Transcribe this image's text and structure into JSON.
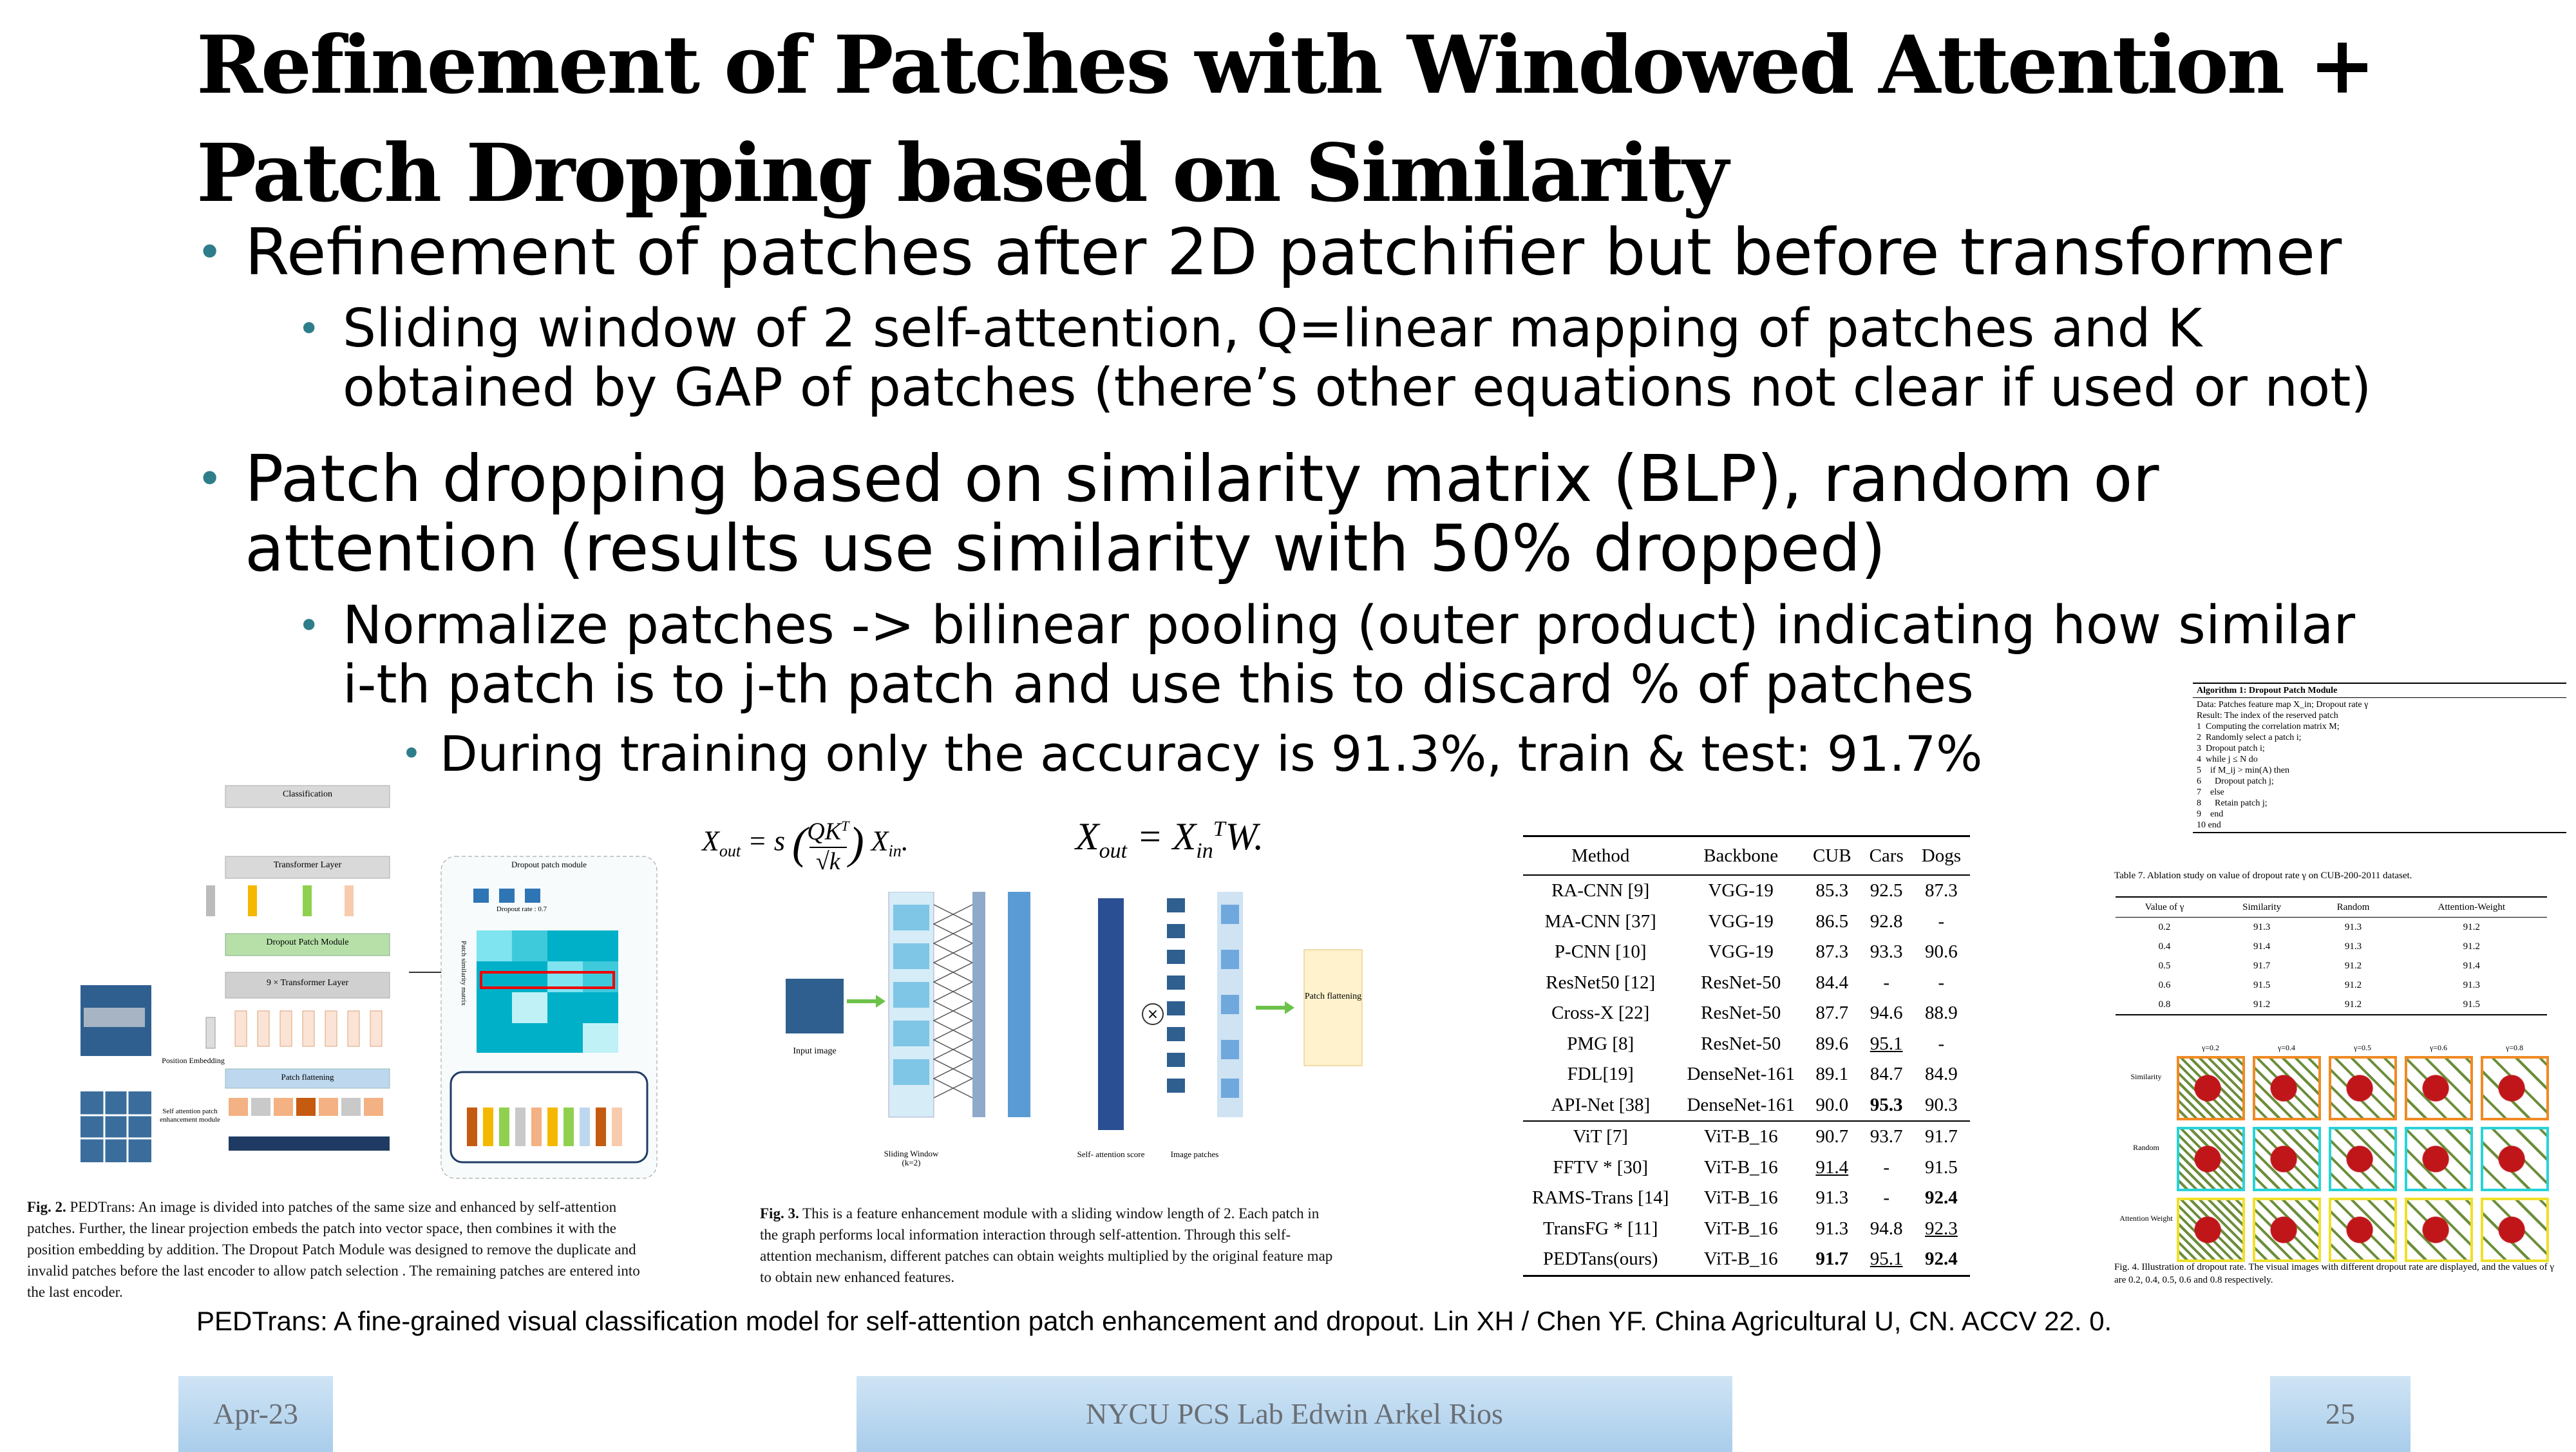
{
  "slide": {
    "title_line1": "Refinement of Patches with Windowed Attention +",
    "title_line2": "Patch Dropping based on Similarity",
    "bullet1": "Refinement of patches after 2D patchifier but before transformer",
    "bullet1_sub_line1": "Sliding window of 2 self-attention, Q=linear mapping of patches and K",
    "bullet1_sub_line2": "obtained by GAP of patches (there’s other equations not clear if used or not)",
    "bullet2_line1": "Patch dropping based on similarity matrix (BLP), random or",
    "bullet2_line2": "attention (results use similarity with 50% dropped)",
    "bullet2_sub_line1": "Normalize patches -> bilinear pooling (outer product) indicating how similar",
    "bullet2_sub_line2": "i-th patch is to j-th patch and use this to discard % of patches",
    "bullet2_subsub": "During training only the accuracy is 91.3%, train & test: 91.7%",
    "citation": "PEDTrans: A fine-grained visual classification model for self-attention patch enhancement and dropout. Lin XH / Chen YF. China Agricultural U, CN. ACCV 22. 0.",
    "bullet_icon": "bullet-dot-icon"
  },
  "fig2": {
    "classification": "Classification",
    "transformer_layer": "Transformer Layer",
    "dropout_patch_module": "Dropout  Patch Module",
    "nx_transformer": "9 ×  Transformer Layer",
    "patch_flattening": "Patch flattening",
    "position_embedding": "Position Embedding",
    "self_attention_module": "Self attention patch enhancement module",
    "dropout_module_title": "Dropout patch module",
    "dropout_rate": "Dropout  rate : 0.7",
    "similarity_matrix": "Patch similarity matrix",
    "caption_label": "Fig. 2.",
    "caption": "PEDTrans: An image is divided into patches of the same size and enhanced by self-attention patches. Further, the linear projection embeds the patch into vector space, then combines it with the position embedding by addition. The Dropout Patch Module was designed to remove the duplicate and invalid patches before the last encoder to allow patch selection . The remaining patches are entered into the last encoder."
  },
  "fig3": {
    "eq1_lhs": "X",
    "eq1_rhs": "= s",
    "eq2": "X",
    "eq2_rhs": "= X",
    "input_image": "Input image",
    "sliding_window": "Sliding Window (k=2)",
    "self_attention_score": "Self- attention score",
    "image_patches": "Image patches",
    "patch_flattening": "Patch flattening",
    "caption_label": "Fig. 3.",
    "caption": "This is a feature enhancement module with a sliding window length of 2. Each patch in the graph performs local information interaction through self-attention. Through this self-attention mechanism, different patches can obtain weights multiplied by the original feature map to obtain new enhanced features."
  },
  "results_table": {
    "headers": [
      "Method",
      "Backbone",
      "CUB",
      "Cars",
      "Dogs"
    ],
    "rows": [
      [
        "RA-CNN [9]",
        "VGG-19",
        "85.3",
        "92.5",
        "87.3"
      ],
      [
        "MA-CNN [37]",
        "VGG-19",
        "86.5",
        "92.8",
        "-"
      ],
      [
        "P-CNN [10]",
        "VGG-19",
        "87.3",
        "93.3",
        "90.6"
      ],
      [
        "ResNet50 [12]",
        "ResNet-50",
        "84.4",
        "-",
        "-"
      ],
      [
        "Cross-X [22]",
        "ResNet-50",
        "87.7",
        "94.6",
        "88.9"
      ],
      [
        "PMG [8]",
        "ResNet-50",
        "89.6",
        "95.1",
        "-"
      ],
      [
        "FDL[19]",
        "DenseNet-161",
        "89.1",
        "84.7",
        "84.9"
      ],
      [
        "API-Net [38]",
        "DenseNet-161",
        "90.0",
        "95.3",
        "90.3"
      ],
      [
        "ViT [7]",
        "ViT-B_16",
        "90.7",
        "93.7",
        "91.7"
      ],
      [
        "FFTV * [30]",
        "ViT-B_16",
        "91.4",
        "-",
        "91.5"
      ],
      [
        "RAMS-Trans [14]",
        "ViT-B_16",
        "91.3",
        "-",
        "92.4"
      ],
      [
        "TransFG * [11]",
        "ViT-B_16",
        "91.3",
        "94.8",
        "92.3"
      ],
      [
        "PEDTans(ours)",
        "ViT-B_16",
        "91.7",
        "95.1",
        "92.4"
      ]
    ]
  },
  "algorithm": {
    "title": "Algorithm 1: Dropout Patch Module",
    "lines": [
      "Data: Patches feature map X_in; Dropout rate γ",
      "Result: The index of the reserved patch",
      "1  Computing the correlation matrix M;",
      "2  Randomly select a patch i;",
      "3  Dropout patch i;",
      "4  while j ≤ N do",
      "5    if M_ij > min(A) then",
      "6      Dropout patch j;",
      "7    else",
      "8      Retain patch j;",
      "9    end",
      "10 end"
    ]
  },
  "ablation_table": {
    "caption": "Table 7. Ablation study on value of dropout rate γ on CUB-200-2011 dataset.",
    "headers": [
      "Value of γ",
      "Similarity",
      "Random",
      "Attention-Weight"
    ],
    "rows": [
      [
        "0.2",
        "91.3",
        "91.3",
        "91.2"
      ],
      [
        "0.4",
        "91.4",
        "91.3",
        "91.2"
      ],
      [
        "0.5",
        "91.7",
        "91.2",
        "91.4"
      ],
      [
        "0.6",
        "91.5",
        "91.2",
        "91.3"
      ],
      [
        "0.8",
        "91.2",
        "91.2",
        "91.5"
      ]
    ]
  },
  "fig4": {
    "col_labels": [
      "γ=0.2",
      "γ=0.4",
      "γ=0.5",
      "γ=0.6",
      "γ=0.8"
    ],
    "row_labels": [
      "Similarity",
      "Random",
      "Attention Weight"
    ],
    "caption": "Fig. 4. Illustration of dropout rate. The visual images with different dropout rate are displayed, and the values of γ are 0.2, 0.4, 0.5, 0.6 and 0.8 respectively."
  },
  "footer": {
    "date": "Apr-23",
    "center": "NYCU PCS Lab Edwin Arkel Rios",
    "page": "25"
  },
  "colors": {
    "bullet": "#2e7d8a",
    "footer_text": "#6a6f75",
    "footer_bg": "#a9cdeb"
  }
}
